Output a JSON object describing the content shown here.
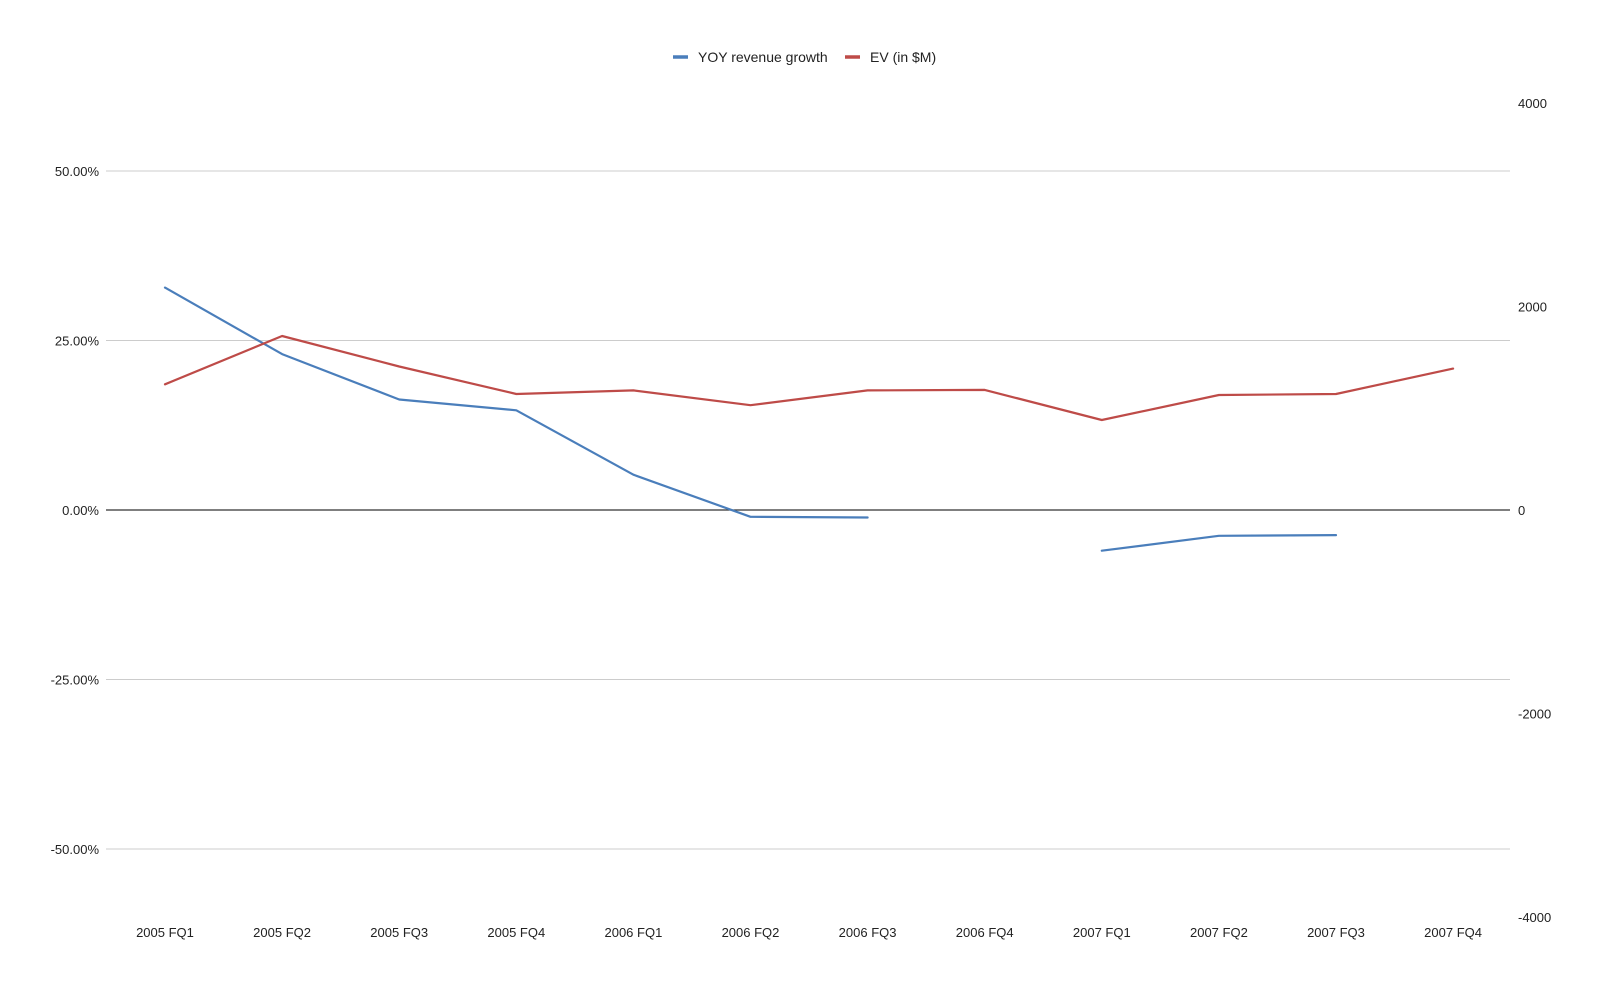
{
  "chart_data": {
    "type": "line",
    "categories": [
      "2005 FQ1",
      "2005 FQ2",
      "2005 FQ3",
      "2005 FQ4",
      "2006 FQ1",
      "2006 FQ2",
      "2006 FQ3",
      "2006 FQ4",
      "2007 FQ1",
      "2007 FQ2",
      "2007 FQ3",
      "2007 FQ4"
    ],
    "series": [
      {
        "name": "YOY revenue growth",
        "axis": "left",
        "color": "#4a7ebb",
        "values": [
          0.328,
          0.23,
          0.163,
          0.147,
          0.052,
          -0.01,
          -0.011,
          null,
          -0.06,
          -0.038,
          -0.037,
          null
        ]
      },
      {
        "name": "EV (in $M)",
        "axis": "right",
        "color": "#be4b48",
        "values": [
          1235,
          1710,
          1410,
          1140,
          1175,
          1030,
          1175,
          1180,
          885,
          1130,
          1140,
          1390
        ]
      }
    ],
    "left_axis": {
      "ylim": [
        -0.6,
        0.6
      ],
      "ticks": [
        0.5,
        0.25,
        0,
        -0.25,
        -0.5
      ],
      "tick_labels": [
        "50.00%",
        "25.00%",
        "0.00%",
        "-25.00%",
        "-50.00%"
      ]
    },
    "right_axis": {
      "ylim": [
        -4000,
        4000
      ],
      "ticks": [
        4000,
        2000,
        0,
        -2000,
        -4000
      ],
      "tick_labels": [
        "4000",
        "2000",
        "0",
        "-2000",
        "-4000"
      ]
    },
    "gridlines": true,
    "zero_line_color": "#333333",
    "grid_color": "#cccccc",
    "legend_position": "top-center",
    "title": "",
    "xlabel": "",
    "ylabel": ""
  }
}
